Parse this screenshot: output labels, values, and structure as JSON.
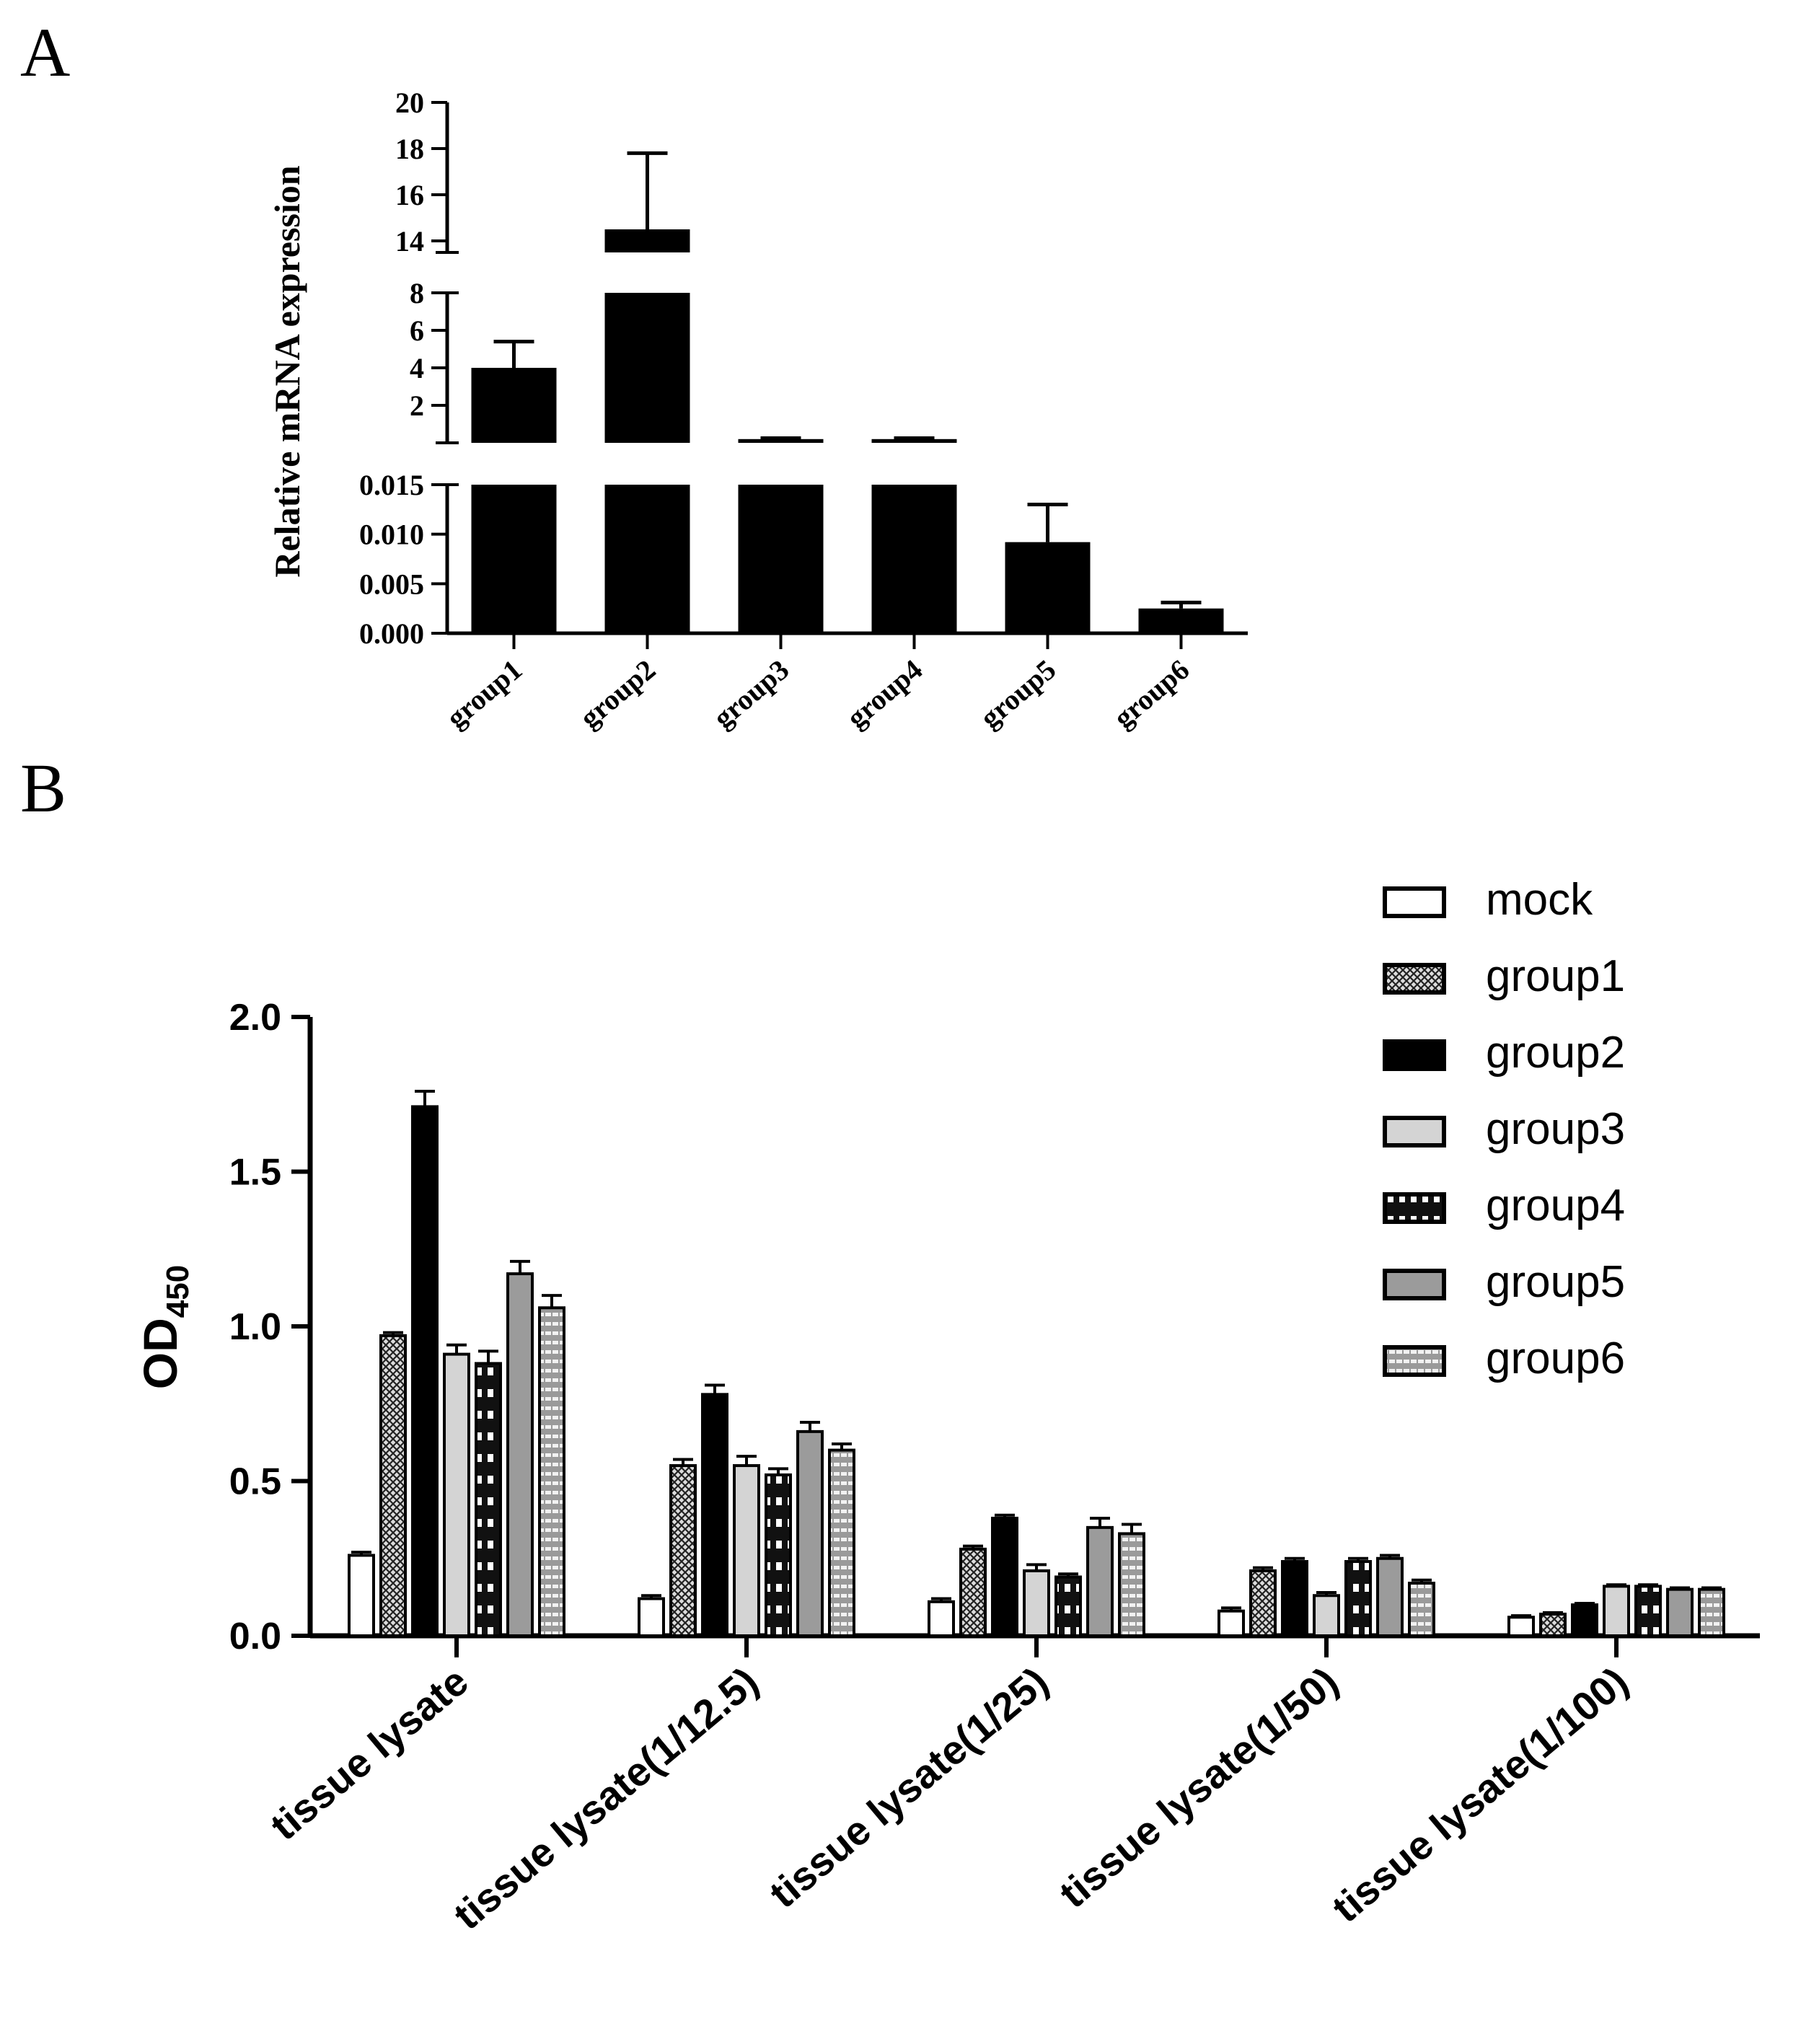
{
  "panel_labels": {
    "a": "A",
    "b": "B"
  },
  "chart_data": [
    {
      "id": "A",
      "type": "bar",
      "title": "",
      "xlabel": "",
      "ylabel": "Relative mRNA expression",
      "categories": [
        "group1",
        "group2",
        "group3",
        "group4",
        "group5",
        "group6"
      ],
      "values": [
        4.0,
        14.5,
        0.2,
        0.2,
        0.0092,
        0.0025
      ],
      "errors": [
        1.4,
        3.3,
        0.05,
        0.05,
        0.0038,
        0.0006
      ],
      "broken_axis": [
        {
          "range": [
            0,
            0.015
          ],
          "ticks": [
            0.0,
            0.005,
            0.01,
            0.015
          ],
          "tick_labels": [
            "0.000",
            "0.005",
            "0.010",
            "0.015"
          ]
        },
        {
          "range": [
            0,
            8
          ],
          "ticks": [
            2,
            4,
            6,
            8
          ],
          "tick_labels": [
            "2",
            "4",
            "6",
            "8"
          ]
        },
        {
          "range": [
            13.5,
            20
          ],
          "ticks": [
            14,
            16,
            18,
            20
          ],
          "tick_labels": [
            "14",
            "16",
            "18",
            "20"
          ]
        }
      ],
      "bar_color": "#000000"
    },
    {
      "id": "B",
      "type": "bar",
      "title": "",
      "xlabel": "",
      "ylabel_main": "OD",
      "ylabel_sub": "450",
      "ylim": [
        0,
        2.0
      ],
      "yticks": [
        "0.0",
        "0.5",
        "1.0",
        "1.5",
        "2.0"
      ],
      "categories": [
        "tissue lysate",
        "tissue lysate(1/12.5)",
        "tissue lysate(1/25)",
        "tissue lysate(1/50)",
        "tissue lysate(1/100)"
      ],
      "series": [
        {
          "name": "mock",
          "values": [
            0.26,
            0.12,
            0.11,
            0.08,
            0.06
          ],
          "errors": [
            0.01,
            0.01,
            0.01,
            0.01,
            0.005
          ],
          "pattern": "white"
        },
        {
          "name": "group1",
          "values": [
            0.97,
            0.55,
            0.28,
            0.21,
            0.07
          ],
          "errors": [
            0.01,
            0.02,
            0.01,
            0.01,
            0.005
          ],
          "pattern": "crosshatch"
        },
        {
          "name": "group2",
          "values": [
            1.71,
            0.78,
            0.38,
            0.24,
            0.1
          ],
          "errors": [
            0.05,
            0.03,
            0.01,
            0.01,
            0.005
          ],
          "pattern": "black"
        },
        {
          "name": "group3",
          "values": [
            0.91,
            0.55,
            0.21,
            0.13,
            0.16
          ],
          "errors": [
            0.03,
            0.03,
            0.02,
            0.01,
            0.005
          ],
          "pattern": "lightgray"
        },
        {
          "name": "group4",
          "values": [
            0.88,
            0.52,
            0.19,
            0.24,
            0.16
          ],
          "errors": [
            0.04,
            0.02,
            0.01,
            0.01,
            0.005
          ],
          "pattern": "checker"
        },
        {
          "name": "group5",
          "values": [
            1.17,
            0.66,
            0.35,
            0.25,
            0.15
          ],
          "errors": [
            0.04,
            0.03,
            0.03,
            0.01,
            0.005
          ],
          "pattern": "gray"
        },
        {
          "name": "group6",
          "values": [
            1.06,
            0.6,
            0.33,
            0.17,
            0.15
          ],
          "errors": [
            0.04,
            0.02,
            0.03,
            0.01,
            0.005
          ],
          "pattern": "stripes"
        }
      ],
      "legend_position": "top-right"
    }
  ]
}
